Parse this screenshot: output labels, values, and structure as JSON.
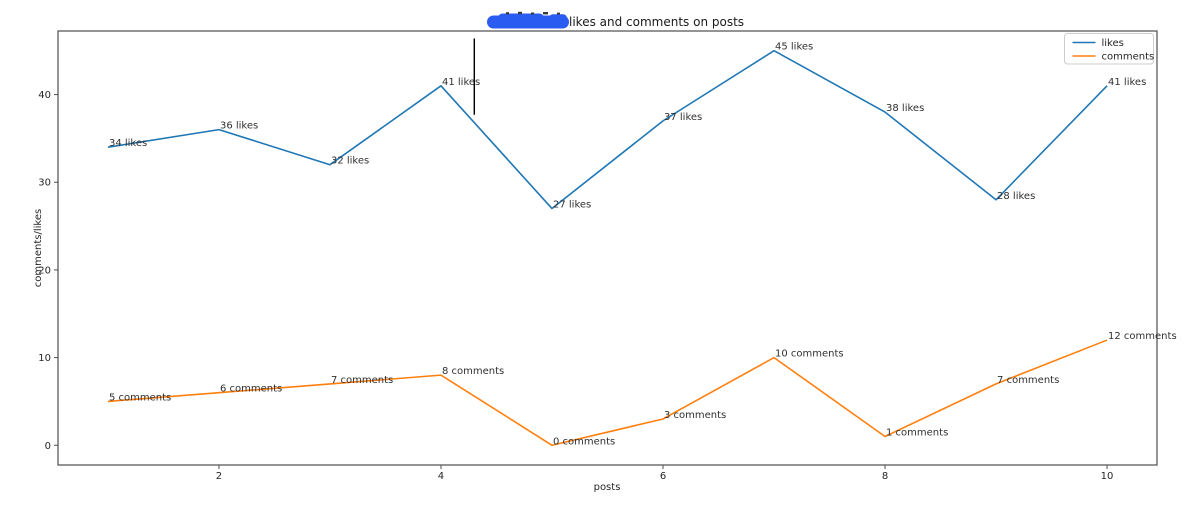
{
  "figure": {
    "background": "#ffffff",
    "spine_color": "#4d4d4d"
  },
  "title": {
    "visible_text": "likes and comments on posts",
    "redaction": {
      "description": "blue-scribble-covering-title-start",
      "color": "#2b5cf2"
    }
  },
  "axes": {
    "xlabel": "posts",
    "ylabel": "comments/likes",
    "xticks": [
      2,
      4,
      6,
      8,
      10
    ],
    "yticks": [
      0,
      10,
      20,
      30,
      40
    ],
    "xlim": [
      0.55,
      10.45
    ],
    "ylim": [
      -2.25,
      47.25
    ],
    "grid": false
  },
  "legend": {
    "position": "upper-right",
    "entries": [
      {
        "label": "likes",
        "color": "#1f77b4"
      },
      {
        "label": "comments",
        "color": "#ff7f0e"
      }
    ]
  },
  "chart_data": {
    "type": "line",
    "x": [
      1,
      2,
      3,
      4,
      5,
      6,
      7,
      8,
      9,
      10
    ],
    "series": [
      {
        "name": "likes",
        "color": "#1f77b4",
        "values": [
          34,
          36,
          32,
          41,
          27,
          37,
          45,
          38,
          28,
          41
        ],
        "point_labels": [
          "34 likes",
          "36 likes",
          "32 likes",
          "41 likes",
          "27 likes",
          "37 likes",
          "45 likes",
          "38 likes",
          "28 likes",
          "41 likes"
        ]
      },
      {
        "name": "comments",
        "color": "#ff7f0e",
        "values": [
          5,
          6,
          7,
          8,
          0,
          3,
          10,
          1,
          7,
          12
        ],
        "point_labels": [
          "5 comments",
          "6 comments",
          "7 comments",
          "8 comments",
          "0 comments",
          "3 comments",
          "10 comments",
          "1 comments",
          "7 comments",
          "12 comments"
        ]
      }
    ],
    "annotation_line": {
      "x": 4.3,
      "y_from": 37.7,
      "y_to": 46.4,
      "color": "#000000"
    }
  }
}
